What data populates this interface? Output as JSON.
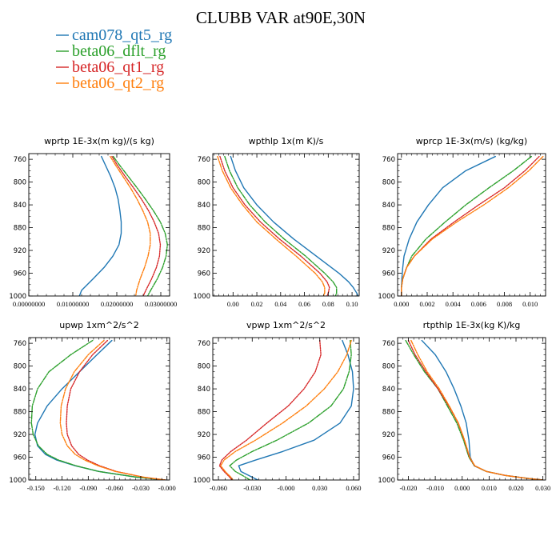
{
  "figure": {
    "title": "CLUBB VAR at90E,30N"
  },
  "legend": [
    {
      "name": "cam078_qt5_rg",
      "color": "#1f77b4",
      "dash": ""
    },
    {
      "name": "beta06_dflt_rg",
      "color": "#2ca02c",
      "dash": "6,1.5,1.5,1.5"
    },
    {
      "name": "beta06_qt1_rg",
      "color": "#d62728",
      "dash": "1.6,1.4"
    },
    {
      "name": "beta06_qt2_rg",
      "color": "#ff7f0e",
      "dash": "5,1.5,1.5,1.5"
    }
  ],
  "chart_data": [
    {
      "type": "line",
      "title": "wprtp  1E-3x(m kg)/(s kg)",
      "xlim": [
        0,
        0.032
      ],
      "ylim": [
        1000,
        750
      ],
      "yticks": [
        760,
        800,
        840,
        880,
        920,
        960,
        1000
      ],
      "xticks": [
        0,
        0.01,
        0.02,
        0.03
      ],
      "xticklabels": [
        "0.00000000",
        "0.01000000",
        "0.02000000",
        "0.03000000"
      ],
      "y": [
        755,
        770,
        790,
        810,
        830,
        850,
        870,
        890,
        910,
        930,
        950,
        970,
        990,
        1000
      ],
      "series": [
        {
          "name": "cam078_qt5_rg",
          "values": [
            0.0165,
            0.0174,
            0.0186,
            0.0196,
            0.0203,
            0.0207,
            0.021,
            0.021,
            0.0205,
            0.0191,
            0.0171,
            0.0146,
            0.012,
            0.0115
          ]
        },
        {
          "name": "beta06_dflt_rg",
          "values": [
            0.0192,
            0.0206,
            0.0226,
            0.0246,
            0.0265,
            0.0283,
            0.0299,
            0.031,
            0.0315,
            0.0312,
            0.0304,
            0.0292,
            0.0277,
            0.027
          ]
        },
        {
          "name": "beta06_qt1_rg",
          "values": [
            0.0189,
            0.0201,
            0.0219,
            0.0238,
            0.0256,
            0.0272,
            0.0285,
            0.0295,
            0.0299,
            0.0297,
            0.029,
            0.0279,
            0.0266,
            0.026
          ]
        },
        {
          "name": "beta06_qt2_rg",
          "values": [
            0.0185,
            0.0197,
            0.0214,
            0.0231,
            0.0246,
            0.0259,
            0.027,
            0.0276,
            0.0276,
            0.0271,
            0.0263,
            0.0253,
            0.0245,
            0.0243
          ]
        }
      ]
    },
    {
      "type": "line",
      "title": "wpthlp  1x(m K)/s",
      "xlim": [
        -0.017,
        0.106
      ],
      "ylim": [
        1000,
        750
      ],
      "yticks": [
        760,
        800,
        840,
        880,
        920,
        960,
        1000
      ],
      "xticks": [
        0,
        0.02,
        0.04,
        0.06,
        0.08,
        0.1
      ],
      "xticklabels": [
        "0.00",
        "0.02",
        "0.04",
        "0.06",
        "0.08",
        "0.10"
      ],
      "y": [
        755,
        780,
        810,
        840,
        870,
        900,
        930,
        960,
        975,
        985,
        995,
        1000
      ],
      "series": [
        {
          "name": "cam078_qt5_rg",
          "values": [
            -0.002,
            0.002,
            0.009,
            0.02,
            0.034,
            0.051,
            0.07,
            0.089,
            0.097,
            0.101,
            0.104,
            0.105
          ]
        },
        {
          "name": "beta06_dflt_rg",
          "values": [
            -0.007,
            -0.003,
            0.004,
            0.014,
            0.027,
            0.043,
            0.061,
            0.077,
            0.084,
            0.087,
            0.087,
            0.086
          ]
        },
        {
          "name": "beta06_qt1_rg",
          "values": [
            -0.011,
            -0.007,
            0.0,
            0.01,
            0.023,
            0.039,
            0.057,
            0.073,
            0.079,
            0.081,
            0.08,
            0.079
          ]
        },
        {
          "name": "beta06_qt2_rg",
          "values": [
            -0.013,
            -0.009,
            -0.002,
            0.008,
            0.02,
            0.036,
            0.053,
            0.069,
            0.075,
            0.077,
            0.077,
            0.076
          ]
        }
      ]
    },
    {
      "type": "line",
      "title": "wprcp  1E-3x(m/s) (kg/kg)",
      "xlim": [
        -0.0003,
        0.0112
      ],
      "ylim": [
        1000,
        750
      ],
      "yticks": [
        760,
        800,
        840,
        880,
        920,
        960,
        1000
      ],
      "xticks": [
        0,
        0.002,
        0.004,
        0.006,
        0.008,
        0.01
      ],
      "xticklabels": [
        "0.000",
        "0.002",
        "0.004",
        "0.006",
        "0.008",
        "0.010"
      ],
      "y": [
        755,
        780,
        810,
        840,
        870,
        900,
        930,
        950,
        970,
        985,
        1000
      ],
      "series": [
        {
          "name": "cam078_qt5_rg",
          "values": [
            0.0073,
            0.005,
            0.0032,
            0.0021,
            0.0012,
            0.0006,
            0.0002,
            0.0001,
            3e-05,
            0.0,
            0.0
          ]
        },
        {
          "name": "beta06_dflt_rg",
          "values": [
            0.0101,
            0.0087,
            0.0068,
            0.005,
            0.0034,
            0.0019,
            0.0008,
            0.0004,
            0.0001,
            0.0,
            0.0
          ]
        },
        {
          "name": "beta06_qt1_rg",
          "values": [
            0.0107,
            0.0096,
            0.008,
            0.006,
            0.0041,
            0.0023,
            0.001,
            0.0004,
            0.0001,
            0.0,
            0.0
          ]
        },
        {
          "name": "beta06_qt2_rg",
          "values": [
            0.011,
            0.0099,
            0.0083,
            0.0064,
            0.0043,
            0.0024,
            0.001,
            0.0004,
            0.0001,
            0.0,
            0.0
          ]
        }
      ]
    },
    {
      "type": "line",
      "title": "upwp  1xm^2/s^2",
      "xlim": [
        -0.158,
        0.003
      ],
      "ylim": [
        1000,
        750
      ],
      "yticks": [
        760,
        800,
        840,
        880,
        920,
        960,
        1000
      ],
      "xticks": [
        -0.15,
        -0.12,
        -0.09,
        -0.06,
        -0.03,
        0.0
      ],
      "xticklabels": [
        "-0.150",
        "-0.120",
        "-0.090",
        "-0.060",
        "-0.030",
        "-0.000"
      ],
      "y": [
        755,
        780,
        810,
        840,
        870,
        900,
        920,
        940,
        955,
        965,
        975,
        985,
        995,
        1000
      ],
      "series": [
        {
          "name": "cam078_qt5_rg",
          "values": [
            -0.063,
            -0.08,
            -0.1,
            -0.12,
            -0.137,
            -0.148,
            -0.151,
            -0.148,
            -0.139,
            -0.126,
            -0.105,
            -0.078,
            -0.035,
            -0.002
          ]
        },
        {
          "name": "beta06_dflt_rg",
          "values": [
            -0.085,
            -0.11,
            -0.135,
            -0.148,
            -0.154,
            -0.155,
            -0.153,
            -0.147,
            -0.137,
            -0.124,
            -0.104,
            -0.078,
            -0.035,
            -0.002
          ]
        },
        {
          "name": "beta06_qt1_rg",
          "values": [
            -0.068,
            -0.085,
            -0.1,
            -0.11,
            -0.114,
            -0.115,
            -0.114,
            -0.109,
            -0.101,
            -0.091,
            -0.077,
            -0.058,
            -0.027,
            -0.002
          ]
        },
        {
          "name": "beta06_qt2_rg",
          "values": [
            -0.072,
            -0.09,
            -0.106,
            -0.116,
            -0.121,
            -0.122,
            -0.12,
            -0.114,
            -0.105,
            -0.094,
            -0.079,
            -0.059,
            -0.027,
            -0.002
          ]
        }
      ]
    },
    {
      "type": "line",
      "title": "vpwp  1xm^2/s^2",
      "xlim": [
        -0.065,
        0.065
      ],
      "ylim": [
        1000,
        750
      ],
      "yticks": [
        760,
        800,
        840,
        880,
        920,
        960,
        1000
      ],
      "xticks": [
        -0.06,
        -0.03,
        0.0,
        0.03,
        0.06
      ],
      "xticklabels": [
        "-0.060",
        "-0.030",
        "-0.000",
        "0.030",
        "0.060"
      ],
      "y": [
        755,
        780,
        810,
        840,
        870,
        900,
        930,
        950,
        965,
        975,
        985,
        995,
        1000
      ],
      "series": [
        {
          "name": "cam078_qt5_rg",
          "values": [
            0.05,
            0.055,
            0.059,
            0.06,
            0.058,
            0.048,
            0.025,
            -0.003,
            -0.027,
            -0.042,
            -0.04,
            -0.03,
            -0.025
          ]
        },
        {
          "name": "beta06_dflt_rg",
          "values": [
            0.057,
            0.058,
            0.056,
            0.051,
            0.04,
            0.02,
            -0.008,
            -0.03,
            -0.044,
            -0.05,
            -0.045,
            -0.036,
            -0.032
          ]
        },
        {
          "name": "beta06_qt1_rg",
          "values": [
            0.03,
            0.031,
            0.026,
            0.016,
            0.002,
            -0.017,
            -0.035,
            -0.049,
            -0.057,
            -0.059,
            -0.055,
            -0.05,
            -0.048
          ]
        },
        {
          "name": "beta06_qt2_rg",
          "values": [
            0.058,
            0.054,
            0.046,
            0.034,
            0.018,
            -0.003,
            -0.027,
            -0.045,
            -0.055,
            -0.058,
            -0.054,
            -0.049,
            -0.047
          ]
        }
      ]
    },
    {
      "type": "line",
      "title": "rtpthlp  1E-3x(kg K)/kg",
      "xlim": [
        -0.024,
        0.031
      ],
      "ylim": [
        1000,
        750
      ],
      "yticks": [
        760,
        800,
        840,
        880,
        920,
        960,
        1000
      ],
      "xticks": [
        -0.02,
        -0.01,
        0.0,
        0.01,
        0.02,
        0.03
      ],
      "xticklabels": [
        "-0.020",
        "-0.010",
        "0.000",
        "0.010",
        "0.020",
        "0.030"
      ],
      "y": [
        755,
        780,
        810,
        840,
        870,
        900,
        930,
        960,
        975,
        985,
        992,
        997,
        1000
      ],
      "series": [
        {
          "name": "cam078_qt5_rg",
          "values": [
            -0.015,
            -0.01,
            -0.006,
            -0.003,
            -0.0005,
            0.0015,
            0.0025,
            0.003,
            0.0045,
            0.009,
            0.016,
            0.024,
            0.03
          ]
        },
        {
          "name": "beta06_dflt_rg",
          "values": [
            -0.021,
            -0.018,
            -0.014,
            -0.009,
            -0.0055,
            -0.002,
            0.0005,
            0.0025,
            0.0045,
            0.009,
            0.016,
            0.024,
            0.03
          ]
        },
        {
          "name": "beta06_qt1_rg",
          "values": [
            -0.02,
            -0.0175,
            -0.0135,
            -0.009,
            -0.005,
            -0.0015,
            0.0008,
            0.0027,
            0.0046,
            0.009,
            0.016,
            0.024,
            0.03
          ]
        },
        {
          "name": "beta06_qt2_rg",
          "values": [
            -0.019,
            -0.0165,
            -0.013,
            -0.0085,
            -0.0048,
            -0.0014,
            0.0009,
            0.0028,
            0.0047,
            0.009,
            0.016,
            0.024,
            0.03
          ]
        }
      ]
    }
  ]
}
